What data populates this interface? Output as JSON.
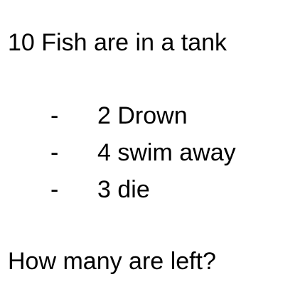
{
  "heading": "10 Fish are in a tank",
  "bullets": [
    {
      "marker": "-",
      "text": "2 Drown"
    },
    {
      "marker": "-",
      "text": "4 swim away"
    },
    {
      "marker": "-",
      "text": "3 die"
    }
  ],
  "question": "How many are left?"
}
